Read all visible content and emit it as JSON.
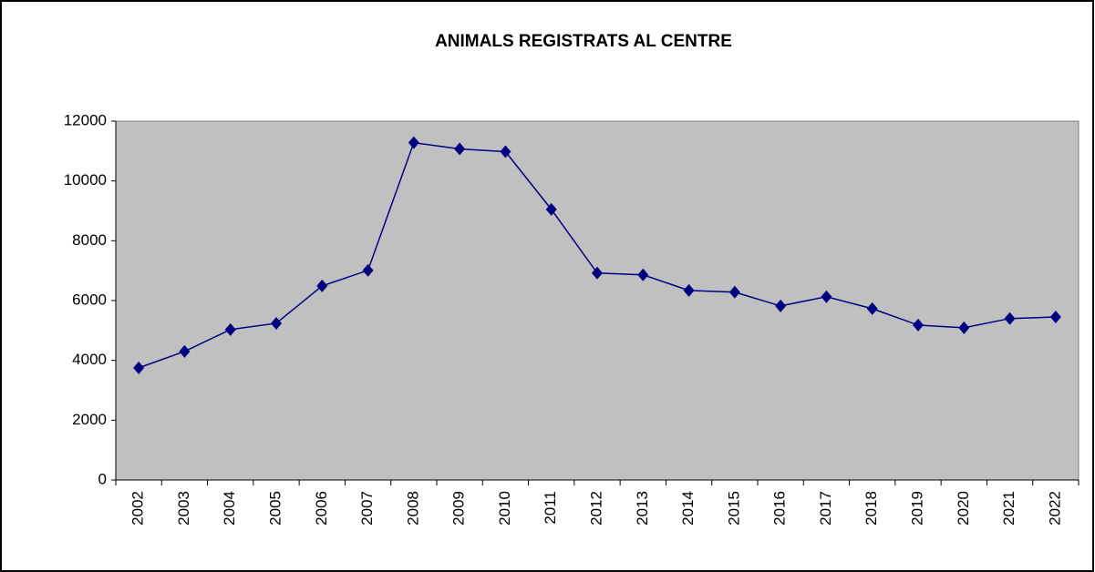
{
  "chart_data": {
    "type": "line",
    "title": "ANIMALS REGISTRATS AL CENTRE",
    "categories": [
      "2002",
      "2003",
      "2004",
      "2005",
      "2006",
      "2007",
      "2008",
      "2009",
      "2010",
      "2011",
      "2012",
      "2013",
      "2014",
      "2015",
      "2016",
      "2017",
      "2018",
      "2019",
      "2020",
      "2021",
      "2022"
    ],
    "series": [
      {
        "color": "#000080",
        "values": [
          3750,
          4300,
          5030,
          5240,
          6490,
          7010,
          11280,
          11070,
          10980,
          9050,
          6920,
          6860,
          6340,
          6280,
          5820,
          6130,
          5730,
          5180,
          5090,
          5400,
          5450
        ]
      }
    ],
    "ylim": [
      0,
      12000
    ],
    "yticks": [
      0,
      2000,
      4000,
      6000,
      8000,
      10000,
      12000
    ]
  }
}
